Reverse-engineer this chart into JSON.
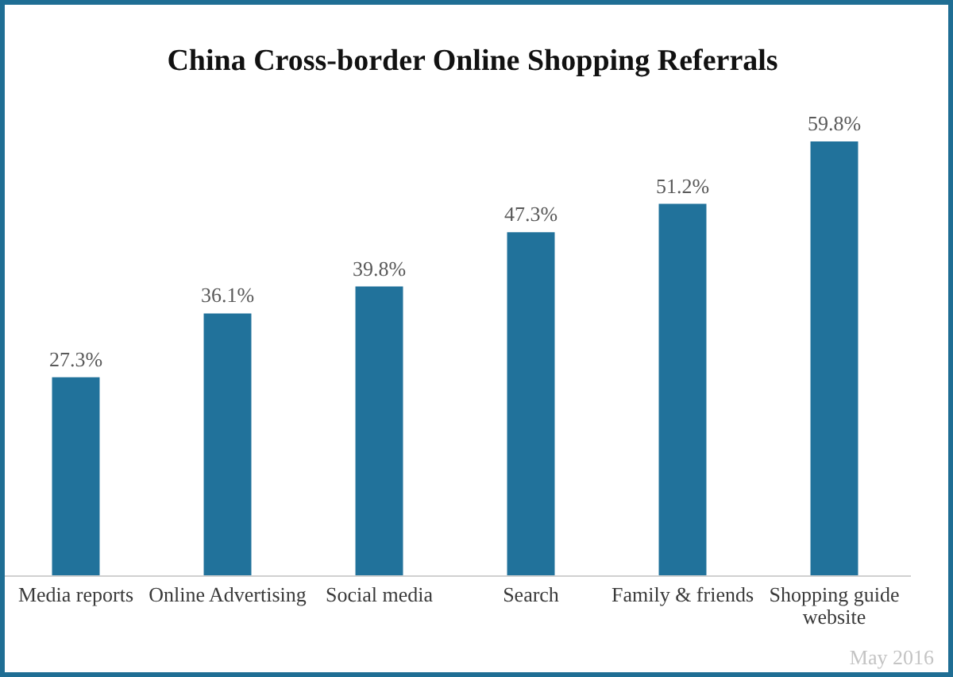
{
  "chart_data": {
    "type": "bar",
    "title": "China Cross-border Online Shopping Referrals",
    "categories": [
      "Media reports",
      "Online Advertising",
      "Social media",
      "Search",
      "Family & friends",
      "Shopping guide website"
    ],
    "values": [
      27.3,
      36.1,
      39.8,
      47.3,
      51.2,
      59.8
    ],
    "value_labels": [
      "27.3%",
      "36.1%",
      "39.8%",
      "47.3%",
      "51.2%",
      "59.8%"
    ],
    "color": "#21729b",
    "tick_labels": "x",
    "annotations": [
      "May 2016"
    ]
  }
}
